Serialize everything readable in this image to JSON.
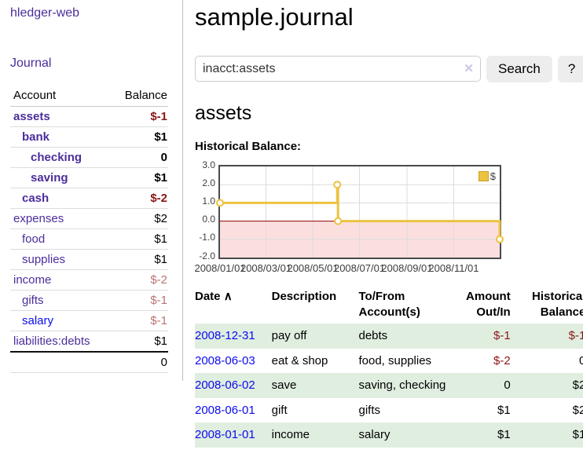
{
  "app": {
    "title": "hledger-web"
  },
  "colors": {
    "link_purple": "#4b2e9c",
    "link_blue": "#0b0bee",
    "negative_strong": "#8b1616",
    "negative_muted": "#bb7272",
    "row_green": "#e0eee0",
    "chart_gold": "#edc240",
    "chart_negative_region": "#fbdfdf",
    "chart_zero_line": "#8b0000"
  },
  "sidebar": {
    "journal_label": "Journal",
    "accounts": {
      "header_account": "Account",
      "header_balance": "Balance",
      "rows": [
        {
          "label": "assets",
          "indent": 1,
          "bold": true,
          "balance": "$-1",
          "balance_color": "neg"
        },
        {
          "label": "bank",
          "indent": 2,
          "bold": true,
          "balance": "$1"
        },
        {
          "label": "checking",
          "indent": 3,
          "bold": true,
          "balance": "0"
        },
        {
          "label": "saving",
          "indent": 3,
          "bold": true,
          "balance": "$1"
        },
        {
          "label": "cash",
          "indent": 2,
          "bold": true,
          "balance": "$-2",
          "balance_color": "neg"
        },
        {
          "label": "expenses",
          "indent": 1,
          "balance": "$2"
        },
        {
          "label": "food",
          "indent": 2,
          "balance": "$1"
        },
        {
          "label": "supplies",
          "indent": 2,
          "balance": "$1"
        },
        {
          "label": "income",
          "indent": 1,
          "balance": "$-2",
          "balance_color": "neg-muted"
        },
        {
          "label": "gifts",
          "indent": 2,
          "balance": "$-1",
          "balance_color": "neg-muted"
        },
        {
          "label": "salary",
          "indent": 2,
          "blue": true,
          "balance": "$-1",
          "balance_color": "neg-muted"
        },
        {
          "label": "liabilities:debts",
          "indent": 1,
          "balance": "$1"
        }
      ],
      "total": "0"
    }
  },
  "main": {
    "title": "sample.journal",
    "search": {
      "value": "inacct:assets",
      "clear_icon": "✕",
      "button_label": "Search",
      "help_label": "?"
    },
    "account_heading": "assets",
    "chart_label": "Historical Balance:"
  },
  "chart_data": {
    "type": "line",
    "title": "Historical Balance:",
    "step": true,
    "x_range_days": 365,
    "ylim": [
      -2,
      3
    ],
    "y_ticks": [
      {
        "label": "3.0",
        "value": 3
      },
      {
        "label": "2.0",
        "value": 2
      },
      {
        "label": "1.0",
        "value": 1
      },
      {
        "label": "0.0",
        "value": 0
      },
      {
        "label": "-1.0",
        "value": -1
      },
      {
        "label": "-2.0",
        "value": -2
      }
    ],
    "x_ticks": [
      {
        "label": "2008/01/01",
        "day": 0
      },
      {
        "label": "2008/03/01",
        "day": 60
      },
      {
        "label": "2008/05/01",
        "day": 121
      },
      {
        "label": "2008/07/01",
        "day": 182
      },
      {
        "label": "2008/09/01",
        "day": 244
      },
      {
        "label": "2008/11/01",
        "day": 305
      }
    ],
    "series": [
      {
        "name": "$",
        "color": "#edc240",
        "points": [
          {
            "date": "2008/01/01",
            "day": 0,
            "value": 1
          },
          {
            "date": "2008/06/02",
            "day": 153,
            "value": 2
          },
          {
            "date": "2008/06/03",
            "day": 154,
            "value": 0
          },
          {
            "date": "2008/12/31",
            "day": 365,
            "value": -1
          }
        ]
      }
    ],
    "legend_position": "top-right",
    "grid": true
  },
  "register": {
    "headers": {
      "date": "Date",
      "sort_icon": "∧",
      "description": "Description",
      "accounts": "To/From\nAccount(s)",
      "amount": "Amount\nOut/In",
      "balance": "Historical\nBalance"
    },
    "rows": [
      {
        "date": "2008-12-31",
        "description": "pay off",
        "accounts": "debts",
        "amount": "$-1",
        "amount_negative": true,
        "balance": "$-1",
        "balance_negative": true,
        "shaded": true
      },
      {
        "date": "2008-06-03",
        "description": "eat & shop",
        "accounts": "food, supplies",
        "amount": "$-2",
        "amount_negative": true,
        "balance": "0",
        "shaded": false
      },
      {
        "date": "2008-06-02",
        "description": "save",
        "accounts": "saving, checking",
        "amount": "0",
        "balance": "$2",
        "shaded": true
      },
      {
        "date": "2008-06-01",
        "description": "gift",
        "accounts": "gifts",
        "amount": "$1",
        "balance": "$2",
        "shaded": false
      },
      {
        "date": "2008-01-01",
        "description": "income",
        "accounts": "salary",
        "amount": "$1",
        "balance": "$1",
        "shaded": true
      }
    ]
  }
}
